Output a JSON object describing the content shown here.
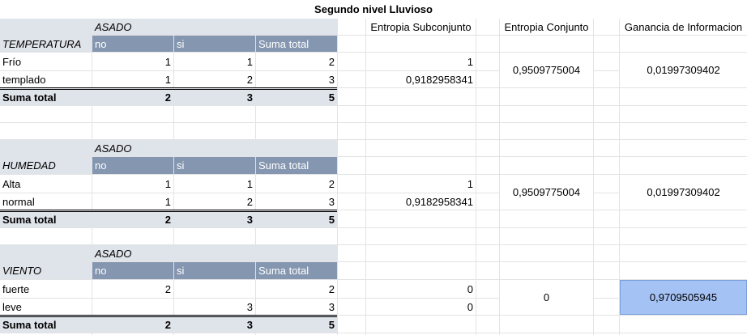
{
  "title": "Segundo nivel Lluvioso",
  "metric_headers": {
    "entropia_subconjunto": "Entropia Subconjunto",
    "entropia_conjunto": "Entropia Conjunto",
    "ganancia": "Ganancia de Informacion"
  },
  "colors": {
    "header_light": "#dfe3ea",
    "header_dark": "#8496b0",
    "highlight": "#a4c2f4"
  },
  "blocks": [
    {
      "group": "ASADO",
      "attribute": "TEMPERATURA",
      "col_no": "no",
      "col_si": "si",
      "col_total": "Suma total",
      "rows": [
        {
          "label": "Frío",
          "no": "1",
          "si": "1",
          "total": "2",
          "entropy": "1"
        },
        {
          "label": "templado",
          "no": "1",
          "si": "2",
          "total": "3",
          "entropy": "0,9182958341"
        }
      ],
      "sum": {
        "label": "Suma total",
        "no": "2",
        "si": "3",
        "total": "5"
      },
      "entropia_conjunto": "0,9509775004",
      "ganancia": "0,01997309402"
    },
    {
      "group": "ASADO",
      "attribute": "HUMEDAD",
      "col_no": "no",
      "col_si": "si",
      "col_total": "Suma total",
      "rows": [
        {
          "label": "Alta",
          "no": "1",
          "si": "1",
          "total": "2",
          "entropy": "1"
        },
        {
          "label": "normal",
          "no": "1",
          "si": "2",
          "total": "3",
          "entropy": "0,9182958341"
        }
      ],
      "sum": {
        "label": "Suma total",
        "no": "2",
        "si": "3",
        "total": "5"
      },
      "entropia_conjunto": "0,9509775004",
      "ganancia": "0,01997309402"
    },
    {
      "group": "ASADO",
      "attribute": "VIENTO",
      "col_no": "no",
      "col_si": "si",
      "col_total": "Suma total",
      "rows": [
        {
          "label": "fuerte",
          "no": "2",
          "si": "",
          "total": "2",
          "entropy": "0"
        },
        {
          "label": "leve",
          "no": "",
          "si": "3",
          "total": "3",
          "entropy": "0"
        }
      ],
      "sum": {
        "label": "Suma total",
        "no": "2",
        "si": "3",
        "total": "5"
      },
      "entropia_conjunto": "0",
      "ganancia": "0,9709505945"
    }
  ]
}
